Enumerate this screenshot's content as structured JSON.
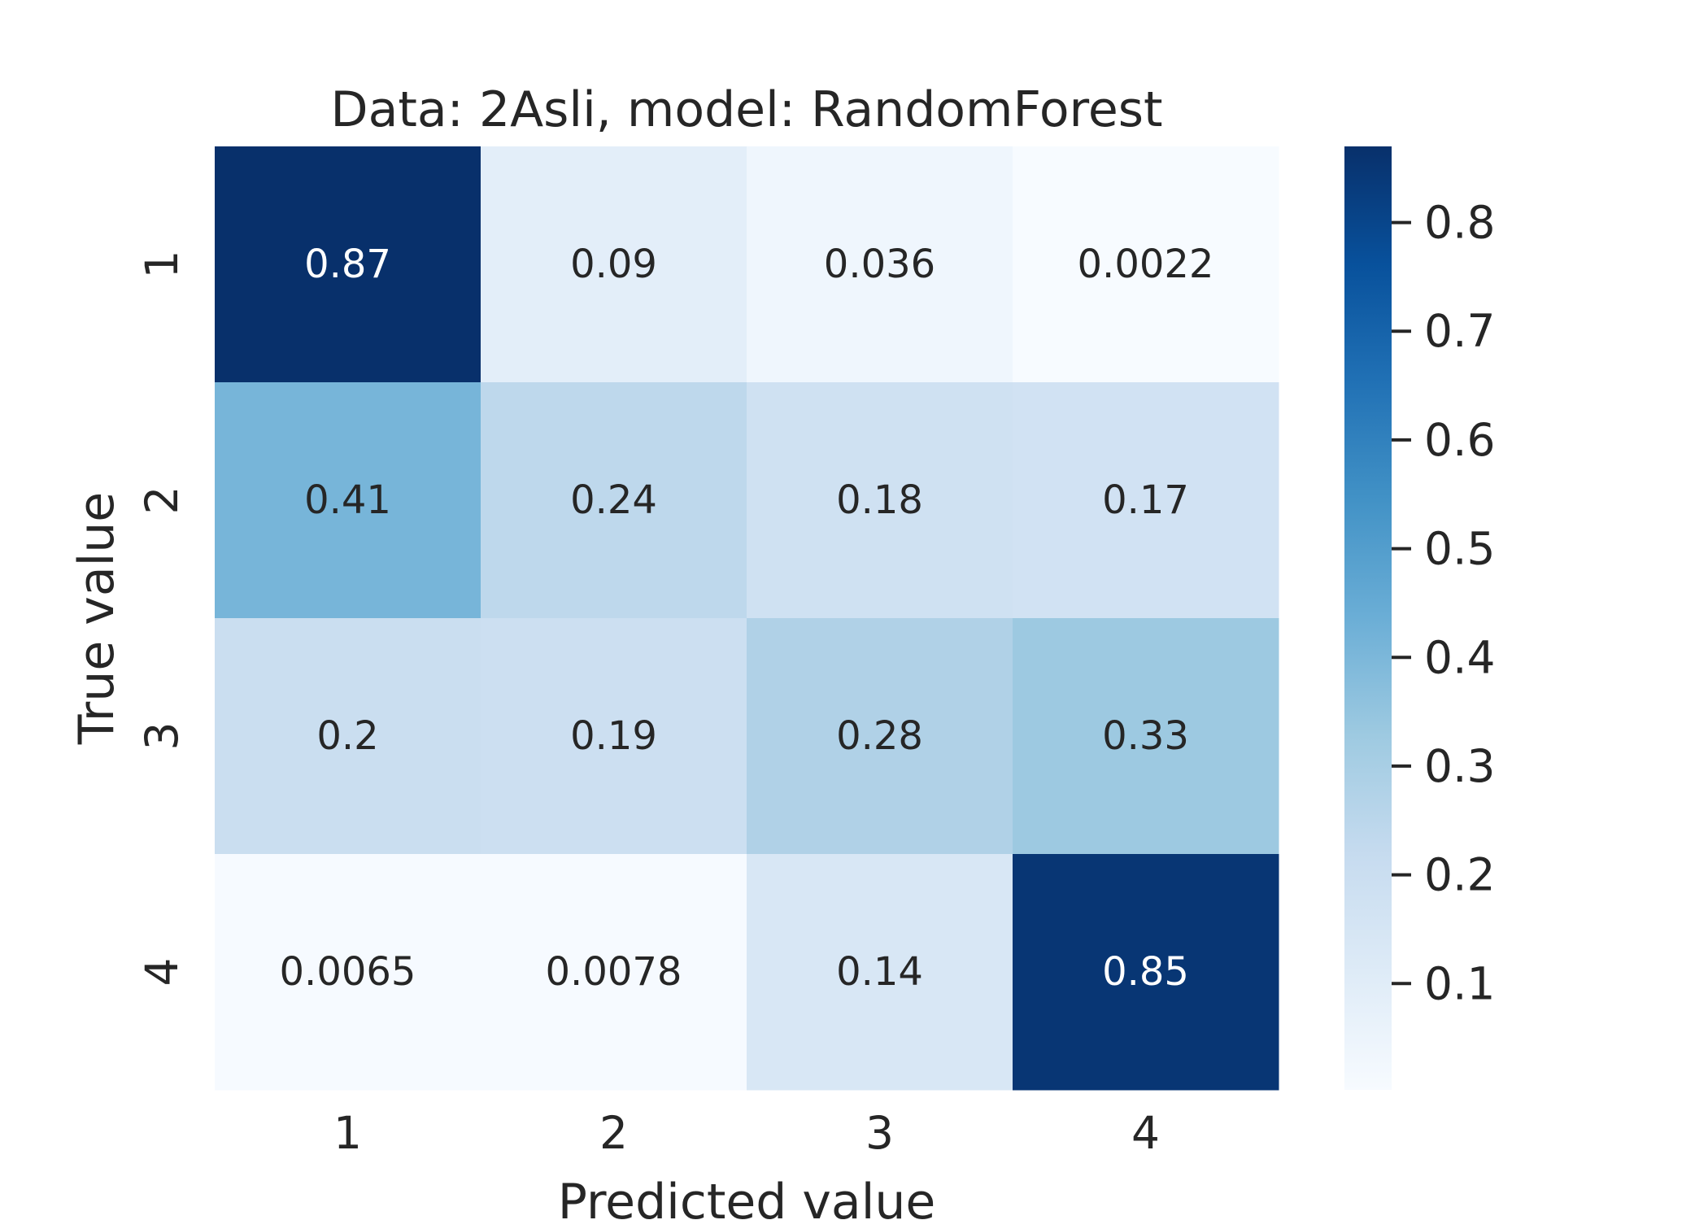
{
  "chart_data": {
    "type": "heatmap",
    "title": "Data: 2Asli, model: RandomForest",
    "xlabel": "Predicted value",
    "ylabel": "True value",
    "x_categories": [
      "1",
      "2",
      "3",
      "4"
    ],
    "y_categories": [
      "1",
      "2",
      "3",
      "4"
    ],
    "values": [
      [
        0.87,
        0.09,
        0.036,
        0.0022
      ],
      [
        0.41,
        0.24,
        0.18,
        0.17
      ],
      [
        0.2,
        0.19,
        0.28,
        0.33
      ],
      [
        0.0065,
        0.0078,
        0.14,
        0.85
      ]
    ],
    "cell_labels": [
      [
        "0.87",
        "0.09",
        "0.036",
        "0.0022"
      ],
      [
        "0.41",
        "0.24",
        "0.18",
        "0.17"
      ],
      [
        "0.2",
        "0.19",
        "0.28",
        "0.33"
      ],
      [
        "0.0065",
        "0.0078",
        "0.14",
        "0.85"
      ]
    ],
    "colormap": "Blues",
    "colorbar": {
      "range": [
        0.0022,
        0.87
      ],
      "ticks": [
        0.1,
        0.2,
        0.3,
        0.4,
        0.5,
        0.6,
        0.7,
        0.8
      ],
      "tick_labels": [
        "0.1",
        "0.2",
        "0.3",
        "0.4",
        "0.5",
        "0.6",
        "0.7",
        "0.8"
      ]
    },
    "grid": false
  }
}
